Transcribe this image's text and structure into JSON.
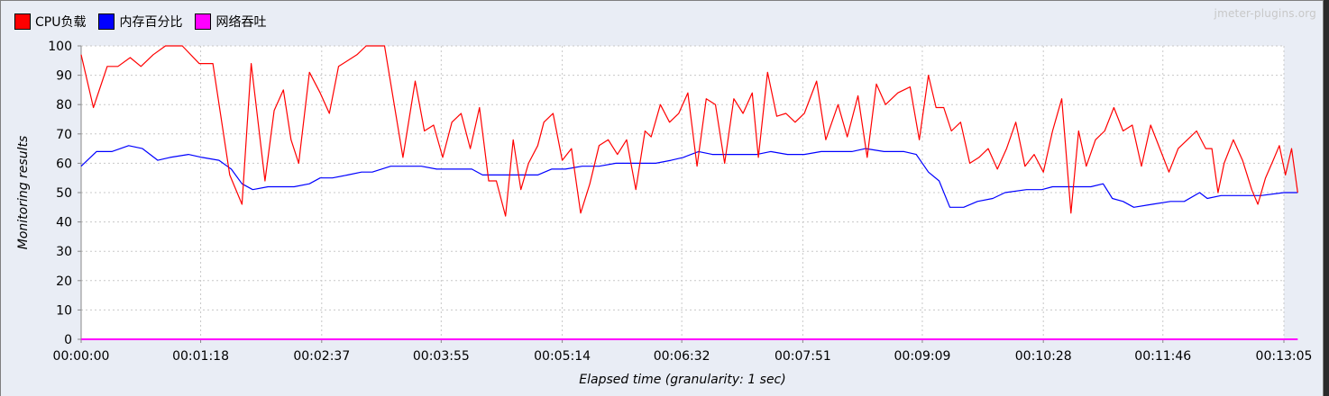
{
  "watermark": "jmeter-plugins.org",
  "legend": [
    {
      "label": "CPU负载",
      "color": "#ff0000"
    },
    {
      "label": "内存百分比",
      "color": "#0000ff"
    },
    {
      "label": "网络吞吐",
      "color": "#ff00ff"
    }
  ],
  "chart_data": {
    "type": "line",
    "xlabel": "Elapsed time (granularity: 1 sec)",
    "ylabel": "Monitoring results",
    "ylim": [
      0,
      100
    ],
    "xlim": [
      0,
      785
    ],
    "y_ticks": [
      0,
      10,
      20,
      30,
      40,
      50,
      60,
      70,
      80,
      90,
      100
    ],
    "x_ticks": [
      {
        "t": 0,
        "label": "00:00:00"
      },
      {
        "t": 78,
        "label": "00:01:18"
      },
      {
        "t": 157,
        "label": "00:02:37"
      },
      {
        "t": 235,
        "label": "00:03:55"
      },
      {
        "t": 314,
        "label": "00:05:14"
      },
      {
        "t": 392,
        "label": "00:06:32"
      },
      {
        "t": 471,
        "label": "00:07:51"
      },
      {
        "t": 549,
        "label": "00:09:09"
      },
      {
        "t": 628,
        "label": "00:10:28"
      },
      {
        "t": 706,
        "label": "00:11:46"
      },
      {
        "t": 785,
        "label": "00:13:05"
      }
    ],
    "grid": true,
    "legend_position": "top-left",
    "series": [
      {
        "name": "CPU负载",
        "color": "#ff0000",
        "points": [
          [
            0,
            97
          ],
          [
            8,
            79
          ],
          [
            17,
            93
          ],
          [
            24,
            93
          ],
          [
            32,
            96
          ],
          [
            39,
            93
          ],
          [
            47,
            97
          ],
          [
            55,
            100
          ],
          [
            66,
            100
          ],
          [
            77,
            94
          ],
          [
            86,
            94
          ],
          [
            97,
            56
          ],
          [
            105,
            46
          ],
          [
            111,
            94
          ],
          [
            120,
            54
          ],
          [
            126,
            78
          ],
          [
            132,
            85
          ],
          [
            137,
            68
          ],
          [
            142,
            60
          ],
          [
            149,
            91
          ],
          [
            156,
            84
          ],
          [
            162,
            77
          ],
          [
            168,
            93
          ],
          [
            180,
            97
          ],
          [
            186,
            100
          ],
          [
            193,
            100
          ],
          [
            198,
            100
          ],
          [
            210,
            62
          ],
          [
            218,
            88
          ],
          [
            224,
            71
          ],
          [
            230,
            73
          ],
          [
            236,
            62
          ],
          [
            242,
            74
          ],
          [
            248,
            77
          ],
          [
            254,
            65
          ],
          [
            260,
            79
          ],
          [
            266,
            54
          ],
          [
            271,
            54
          ],
          [
            277,
            42
          ],
          [
            282,
            68
          ],
          [
            287,
            51
          ],
          [
            292,
            60
          ],
          [
            298,
            66
          ],
          [
            302,
            74
          ],
          [
            308,
            77
          ],
          [
            314,
            61
          ],
          [
            320,
            65
          ],
          [
            326,
            43
          ],
          [
            332,
            53
          ],
          [
            338,
            66
          ],
          [
            344,
            68
          ],
          [
            350,
            63
          ],
          [
            356,
            68
          ],
          [
            362,
            51
          ],
          [
            368,
            71
          ],
          [
            372,
            69
          ],
          [
            378,
            80
          ],
          [
            384,
            74
          ],
          [
            390,
            77
          ],
          [
            396,
            84
          ],
          [
            402,
            59
          ],
          [
            408,
            82
          ],
          [
            414,
            80
          ],
          [
            420,
            60
          ],
          [
            426,
            82
          ],
          [
            432,
            77
          ],
          [
            438,
            84
          ],
          [
            442,
            62
          ],
          [
            448,
            91
          ],
          [
            454,
            76
          ],
          [
            460,
            77
          ],
          [
            466,
            74
          ],
          [
            472,
            77
          ],
          [
            480,
            88
          ],
          [
            486,
            68
          ],
          [
            494,
            80
          ],
          [
            500,
            69
          ],
          [
            507,
            83
          ],
          [
            513,
            62
          ],
          [
            519,
            87
          ],
          [
            525,
            80
          ],
          [
            533,
            84
          ],
          [
            541,
            86
          ],
          [
            547,
            68
          ],
          [
            553,
            90
          ],
          [
            558,
            79
          ],
          [
            563,
            79
          ],
          [
            568,
            71
          ],
          [
            574,
            74
          ],
          [
            580,
            60
          ],
          [
            586,
            62
          ],
          [
            592,
            65
          ],
          [
            598,
            58
          ],
          [
            604,
            65
          ],
          [
            610,
            74
          ],
          [
            616,
            59
          ],
          [
            622,
            63
          ],
          [
            628,
            57
          ],
          [
            634,
            71
          ],
          [
            640,
            82
          ],
          [
            646,
            43
          ],
          [
            651,
            71
          ],
          [
            656,
            59
          ],
          [
            662,
            68
          ],
          [
            668,
            71
          ],
          [
            674,
            79
          ],
          [
            680,
            71
          ],
          [
            686,
            73
          ],
          [
            692,
            59
          ],
          [
            698,
            73
          ],
          [
            704,
            65
          ],
          [
            710,
            57
          ],
          [
            716,
            65
          ],
          [
            722,
            68
          ],
          [
            728,
            71
          ],
          [
            734,
            65
          ],
          [
            738,
            65
          ],
          [
            742,
            50
          ],
          [
            746,
            60
          ],
          [
            752,
            68
          ],
          [
            758,
            61
          ],
          [
            764,
            51
          ],
          [
            768,
            46
          ],
          [
            773,
            55
          ],
          [
            778,
            61
          ],
          [
            782,
            66
          ],
          [
            786,
            56
          ],
          [
            790,
            65
          ],
          [
            794,
            50
          ]
        ]
      },
      {
        "name": "内存百分比",
        "color": "#0000ff",
        "points": [
          [
            0,
            59
          ],
          [
            10,
            64
          ],
          [
            20,
            64
          ],
          [
            31,
            66
          ],
          [
            40,
            65
          ],
          [
            50,
            61
          ],
          [
            58,
            62
          ],
          [
            70,
            63
          ],
          [
            79,
            62
          ],
          [
            90,
            61
          ],
          [
            98,
            58
          ],
          [
            105,
            53
          ],
          [
            112,
            51
          ],
          [
            122,
            52
          ],
          [
            139,
            52
          ],
          [
            149,
            53
          ],
          [
            156,
            55
          ],
          [
            164,
            55
          ],
          [
            174,
            56
          ],
          [
            183,
            57
          ],
          [
            190,
            57
          ],
          [
            202,
            59
          ],
          [
            212,
            59
          ],
          [
            222,
            59
          ],
          [
            232,
            58
          ],
          [
            246,
            58
          ],
          [
            255,
            58
          ],
          [
            262,
            56
          ],
          [
            277,
            56
          ],
          [
            298,
            56
          ],
          [
            307,
            58
          ],
          [
            316,
            58
          ],
          [
            327,
            59
          ],
          [
            338,
            59
          ],
          [
            349,
            60
          ],
          [
            360,
            60
          ],
          [
            375,
            60
          ],
          [
            385,
            61
          ],
          [
            393,
            62
          ],
          [
            403,
            64
          ],
          [
            412,
            63
          ],
          [
            424,
            63
          ],
          [
            432,
            63
          ],
          [
            441,
            63
          ],
          [
            450,
            64
          ],
          [
            461,
            63
          ],
          [
            472,
            63
          ],
          [
            483,
            64
          ],
          [
            493,
            64
          ],
          [
            503,
            64
          ],
          [
            512,
            65
          ],
          [
            524,
            64
          ],
          [
            537,
            64
          ],
          [
            545,
            63
          ],
          [
            553,
            57
          ],
          [
            560,
            54
          ],
          [
            567,
            45
          ],
          [
            576,
            45
          ],
          [
            585,
            47
          ],
          [
            595,
            48
          ],
          [
            603,
            50
          ],
          [
            617,
            51
          ],
          [
            627,
            51
          ],
          [
            634,
            52
          ],
          [
            649,
            52
          ],
          [
            659,
            52
          ],
          [
            667,
            53
          ],
          [
            673,
            48
          ],
          [
            680,
            47
          ],
          [
            687,
            45
          ],
          [
            699,
            46
          ],
          [
            711,
            47
          ],
          [
            720,
            47
          ],
          [
            730,
            50
          ],
          [
            735,
            48
          ],
          [
            744,
            49
          ],
          [
            756,
            49
          ],
          [
            770,
            49
          ],
          [
            785,
            50
          ],
          [
            794,
            50
          ]
        ]
      },
      {
        "name": "网络吞吐",
        "color": "#ff00ff",
        "points": [
          [
            0,
            0
          ],
          [
            794,
            0
          ]
        ]
      }
    ]
  }
}
